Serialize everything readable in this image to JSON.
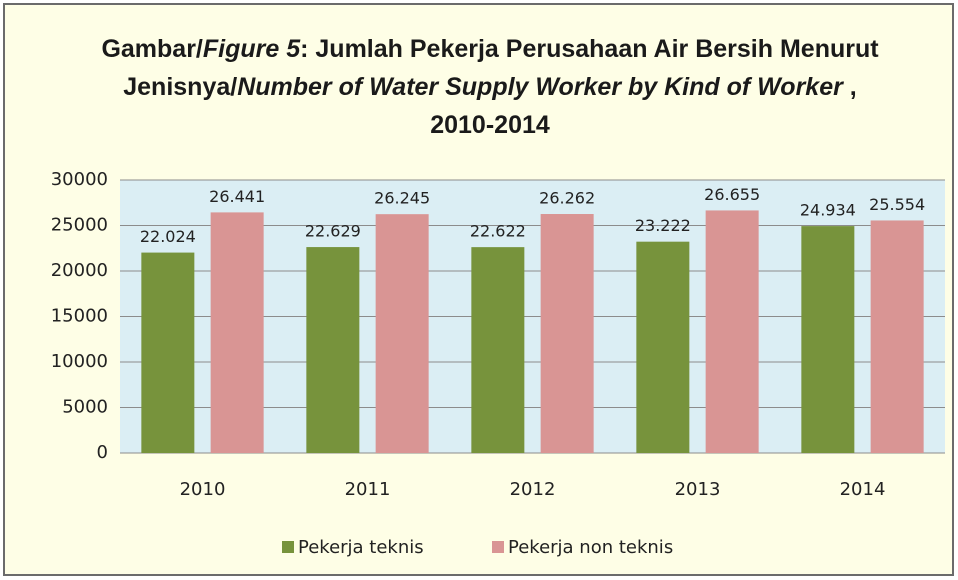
{
  "chart_data": {
    "type": "bar",
    "title": [
      {
        "text": "Gambar/"
      },
      {
        "text": "Figure 5",
        "italic": true
      },
      {
        "text": ": Jumlah Pekerja Perusahaan Air Bersih Menurut Jenisnya/"
      },
      {
        "text": "Number of Water Supply Worker by Kind of Worker",
        "italic": true
      },
      {
        "text": " , 2010-2014"
      }
    ],
    "categories": [
      "2010",
      "2011",
      "2012",
      "2013",
      "2014"
    ],
    "series": [
      {
        "name": "Pekerja teknis",
        "color": "#77933c",
        "values": [
          22024,
          22629,
          22622,
          23222,
          24934
        ],
        "value_labels": [
          "22.024",
          "22.629",
          "22.622",
          "23.222",
          "24.934"
        ]
      },
      {
        "name": "Pekerja non teknis",
        "color": "#d99594",
        "values": [
          26441,
          26245,
          26262,
          26655,
          25554
        ],
        "value_labels": [
          "26.441",
          "26.245",
          "26.262",
          "26.655",
          "25.554"
        ]
      }
    ],
    "ylim": [
      0,
      30000
    ],
    "yticks": [
      0,
      5000,
      10000,
      15000,
      20000,
      25000,
      30000
    ],
    "grid": true,
    "plot_background": "#dbeef4",
    "legend": "bottom"
  }
}
